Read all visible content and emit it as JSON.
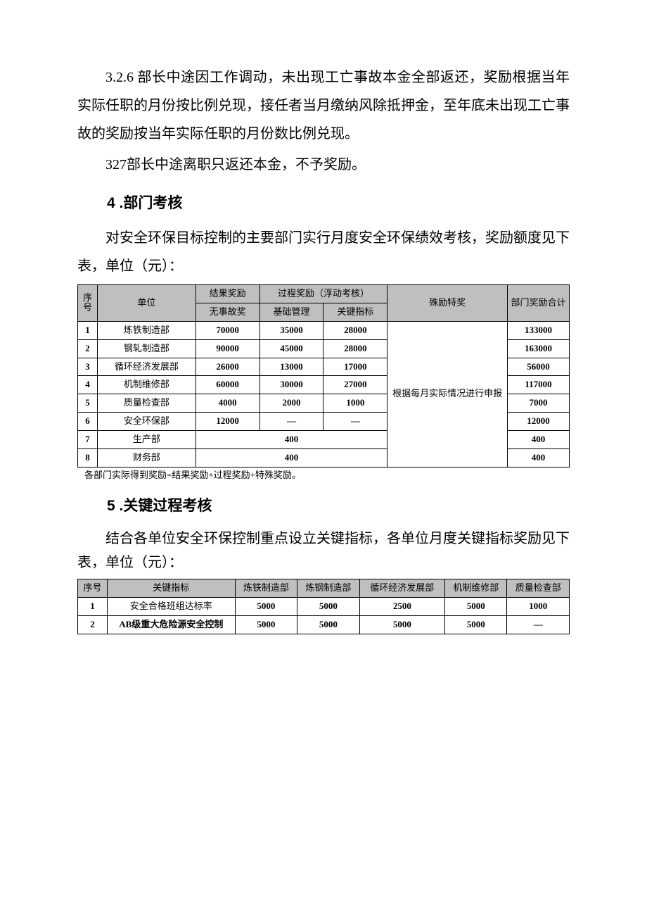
{
  "paragraphs": {
    "p1": "3.2.6 部长中途因工作调动，未出现工亡事故本金全部返还，奖励根据当年实际任职的月份按比例兑现，接任者当月缴纳风除抵押金，至年底未出现工亡事故的奖励按当年实际任职的月份数比例兑现。",
    "p2": "327部长中途离职只返还本金，不予奖励。",
    "h4": "4 .部门考核",
    "p3": "对安全环保目标控制的主要部门实行月度安全环保绩效考核，奖励额度见下表，单位（元）：",
    "footnote1": "各部门实际得到奖励=结果奖励+过程奖励+特殊奖励。",
    "h5": "5 .关键过程考核",
    "p5": "结合各单位安全环保控制重点设立关键指标，各单位月度关键指标奖励见下表，单位（元）："
  },
  "table1": {
    "header": {
      "seq": "序号",
      "unit": "单位",
      "result": "结果奖励",
      "process": "过程奖励（浮动考核）",
      "special": "殊励特奖",
      "total": "部门奖励合计",
      "noacc": "无事故奖",
      "basic": "基础管理",
      "key": "关键指标"
    },
    "note": "根据每月实际情况进行申报",
    "rows": [
      {
        "n": "1",
        "u": "炼铁制造部",
        "a": "70000",
        "b": "35000",
        "c": "28000",
        "t": "133000"
      },
      {
        "n": "2",
        "u": "钢轧制造部",
        "a": "90000",
        "b": "45000",
        "c": "28000",
        "t": "163000"
      },
      {
        "n": "3",
        "u": "循环经济发展部",
        "a": "26000",
        "b": "13000",
        "c": "17000",
        "t": "56000"
      },
      {
        "n": "4",
        "u": "机制维修部",
        "a": "60000",
        "b": "30000",
        "c": "27000",
        "t": "117000"
      },
      {
        "n": "5",
        "u": "质量检查部",
        "a": "4000",
        "b": "2000",
        "c": "1000",
        "t": "7000"
      },
      {
        "n": "6",
        "u": "安全环保部",
        "a": "12000",
        "b": "—",
        "c": "—",
        "t": "12000"
      },
      {
        "n": "7",
        "u": "生产部",
        "m": "400",
        "t": "400"
      },
      {
        "n": "8",
        "u": "财务部",
        "m": "400",
        "t": "400"
      }
    ]
  },
  "table2": {
    "header": {
      "seq": "序号",
      "ind": "关键指标",
      "c1": "炼铁制造部",
      "c2": "炼钢制造部",
      "c3": "循环经济发展部",
      "c4": "机制维修部",
      "c5": "质量检查部"
    },
    "rows": [
      {
        "n": "1",
        "ind": "安全合格班组达标率",
        "v1": "5000",
        "v2": "5000",
        "v3": "2500",
        "v4": "5000",
        "v5": "1000"
      },
      {
        "n": "2",
        "ind": "AB级重大危险源安全控制",
        "v1": "5000",
        "v2": "5000",
        "v3": "5000",
        "v4": "5000",
        "v5": "—"
      }
    ]
  },
  "style": {
    "body_fontsize": 20,
    "table_fontsize": 13,
    "header_bg": "#bfbfbf",
    "text_color": "#000000",
    "border_color": "#000000"
  }
}
